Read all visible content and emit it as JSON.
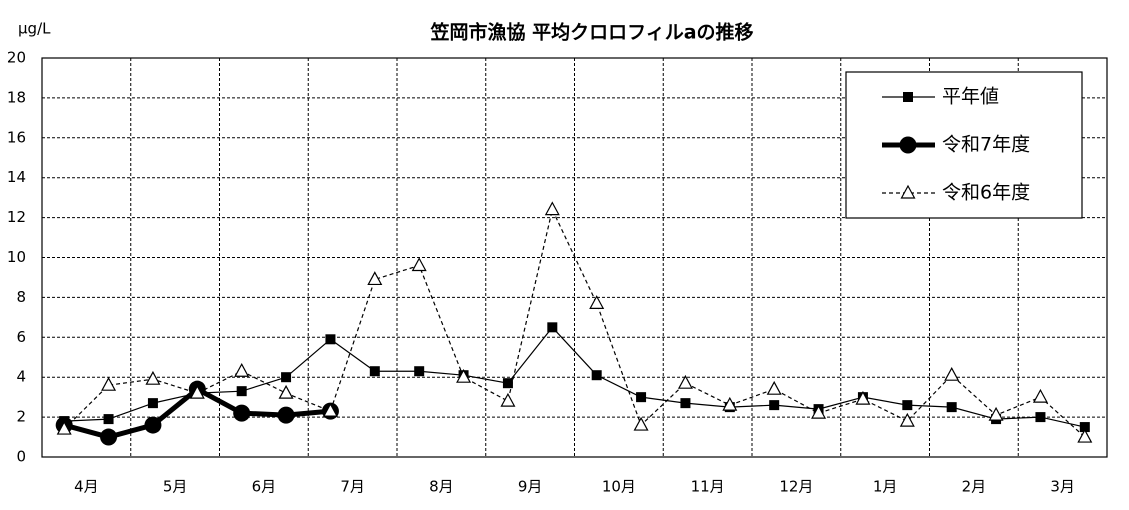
{
  "chart_data": {
    "type": "line",
    "title": "笠岡市漁協  平均クロロフィルaの推移",
    "y_unit": "μg/L",
    "categories": [
      "4月",
      null,
      "5月",
      null,
      "6月",
      null,
      "7月",
      null,
      "8月",
      null,
      "9月",
      null,
      "10月",
      null,
      "11月",
      null,
      "12月",
      null,
      "1月",
      null,
      "2月",
      null,
      "3月",
      null
    ],
    "series": [
      {
        "name": "平年値",
        "color": "#000000",
        "marker": "square",
        "dash": false,
        "width": 1.2,
        "values": [
          1.8,
          1.9,
          2.7,
          3.2,
          3.3,
          4.0,
          5.9,
          4.3,
          4.3,
          4.1,
          3.7,
          6.5,
          4.1,
          3.0,
          2.7,
          2.5,
          2.6,
          2.4,
          3.0,
          2.6,
          2.5,
          1.9,
          2.0,
          1.5
        ]
      },
      {
        "name": "令和7年度",
        "color": "#000000",
        "marker": "circle",
        "dash": false,
        "width": 5,
        "values": [
          1.6,
          1.0,
          1.6,
          3.4,
          2.2,
          2.1,
          2.3,
          null,
          null,
          null,
          null,
          null,
          null,
          null,
          null,
          null,
          null,
          null,
          null,
          null,
          null,
          null,
          null,
          null
        ]
      },
      {
        "name": "令和6年度",
        "color": "#000000",
        "marker": "triangle",
        "dash": true,
        "width": 1.2,
        "values": [
          1.4,
          3.6,
          3.9,
          3.2,
          4.3,
          3.2,
          2.3,
          8.9,
          9.6,
          4.0,
          2.8,
          12.4,
          7.7,
          1.6,
          3.7,
          2.6,
          3.4,
          2.2,
          2.9,
          1.8,
          4.1,
          2.1,
          3.0,
          1.0
        ]
      }
    ],
    "ylim": [
      0,
      20
    ],
    "yticks": [
      0,
      2,
      4,
      6,
      8,
      10,
      12,
      14,
      16,
      18,
      20
    ],
    "grid": true,
    "legend": "upper right"
  }
}
